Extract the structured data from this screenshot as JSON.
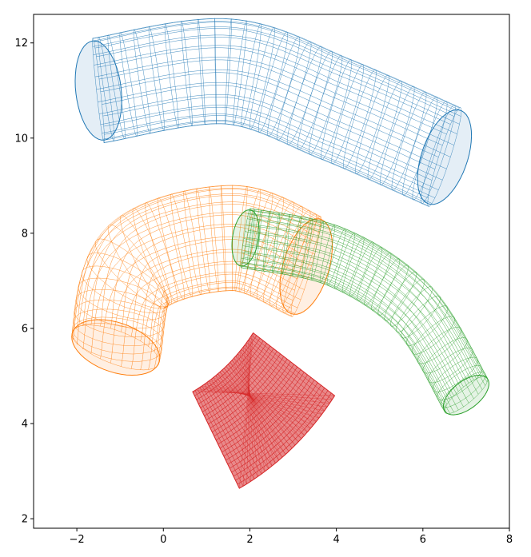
{
  "chart_data": {
    "type": "line",
    "title": "",
    "xlabel": "",
    "ylabel": "",
    "xlim": [
      -3.0,
      8.0
    ],
    "ylim": [
      1.8,
      12.6
    ],
    "x_ticks": [
      -2,
      0,
      2,
      4,
      6,
      8
    ],
    "y_ticks": [
      2,
      4,
      6,
      8,
      10,
      12
    ],
    "x_tick_labels": [
      "−2",
      "0",
      "2",
      "4",
      "6",
      "8"
    ],
    "y_tick_labels": [
      "2",
      "4",
      "6",
      "8",
      "10",
      "12"
    ],
    "grid": false,
    "legend": "none",
    "series": [
      {
        "color": "#1f77b4",
        "shape": "bent-tube",
        "centerline": [
          [
            -1.5,
            11.0
          ],
          [
            1.5,
            11.4
          ],
          [
            4.0,
            10.6
          ],
          [
            6.5,
            9.6
          ]
        ],
        "radius": 1.05
      },
      {
        "color": "#ff7f0e",
        "shape": "bent-tube",
        "centerline": [
          [
            -1.1,
            5.6
          ],
          [
            -0.6,
            7.3
          ],
          [
            1.6,
            7.9
          ],
          [
            3.3,
            7.3
          ]
        ],
        "radius": 1.05
      },
      {
        "color": "#2ca02c",
        "shape": "bent-tube",
        "centerline": [
          [
            1.9,
            7.9
          ],
          [
            4.0,
            7.5
          ],
          [
            5.8,
            6.4
          ],
          [
            7.0,
            4.6
          ]
        ],
        "radius": 0.6
      },
      {
        "color": "#d62728",
        "shape": "annular-sector",
        "center": [
          -1.2,
          8.2
        ],
        "r_inner": 4.0,
        "r_outer": 6.3,
        "angle_deg": [
          -62,
          -35
        ]
      }
    ]
  }
}
